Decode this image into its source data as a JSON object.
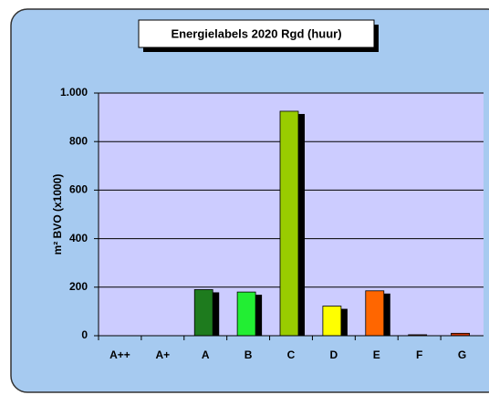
{
  "chart_data": {
    "type": "bar",
    "title": "Energielabels 2020 Rgd (huur)",
    "y_label": "m² BVO (x1000)",
    "categories": [
      "A++",
      "A+",
      "A",
      "B",
      "C",
      "D",
      "E",
      "F",
      "G"
    ],
    "values": [
      0,
      0,
      190,
      180,
      925,
      122,
      185,
      4,
      10
    ],
    "colors": [
      "#1e7b1e",
      "#1e7b1e",
      "#1e7b1e",
      "#22ee33",
      "#99cc00",
      "#ffff00",
      "#ff6600",
      "#993300",
      "#cc3300"
    ],
    "ylim": [
      0,
      1000
    ],
    "yticks": [
      0,
      200,
      400,
      600,
      800,
      {
        "value": 1000,
        "label": "1.000"
      }
    ],
    "grid": true
  }
}
